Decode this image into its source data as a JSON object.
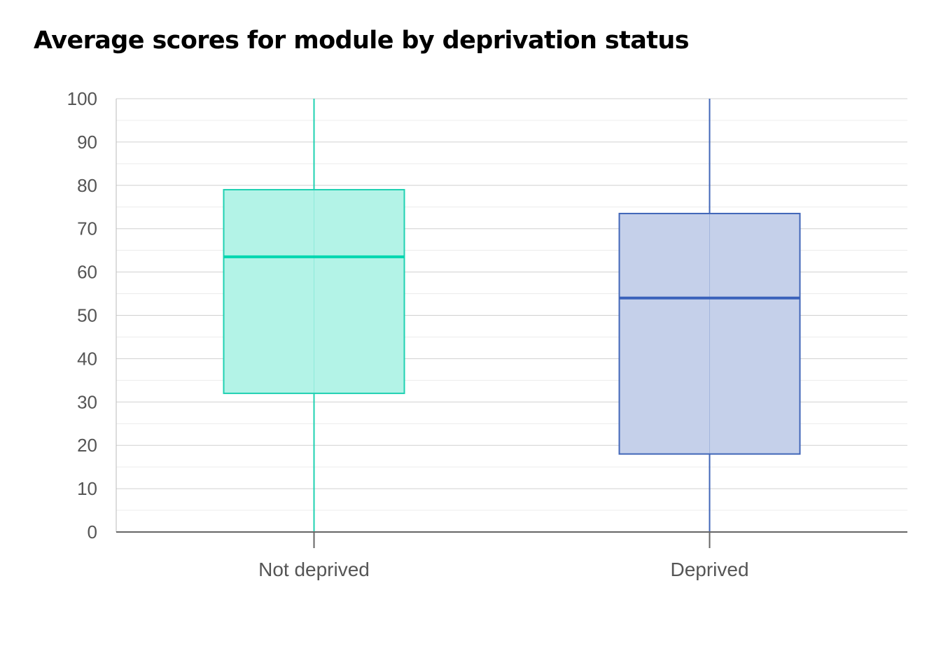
{
  "chart_data": {
    "type": "boxplot",
    "title": "Average scores for module by deprivation status",
    "xlabel": "",
    "ylabel": "",
    "ylim": [
      0,
      100
    ],
    "yticks": [
      "0",
      "10",
      "20",
      "30",
      "40",
      "50",
      "60",
      "70",
      "80",
      "90",
      "100"
    ],
    "grid": true,
    "categories": [
      "Not deprived",
      "Deprived"
    ],
    "boxes": [
      {
        "category": "Not deprived",
        "min": 0,
        "q1": 32,
        "median": 63.5,
        "q3": 79,
        "max": 100,
        "color": "#1fd1b2",
        "fill": "#b3f3e7",
        "median_color": "#00d7b0"
      },
      {
        "category": "Deprived",
        "min": 0,
        "q1": 18,
        "median": 54,
        "q3": 73.5,
        "max": 100,
        "color": "#4166b8",
        "fill": "#c5d0ea",
        "median_color": "#3a62bb"
      }
    ],
    "colors": {
      "gridline": "#d0d0d0",
      "minor_gridline": "#ececec",
      "axis": "#666666",
      "tick_text": "#555555"
    }
  }
}
